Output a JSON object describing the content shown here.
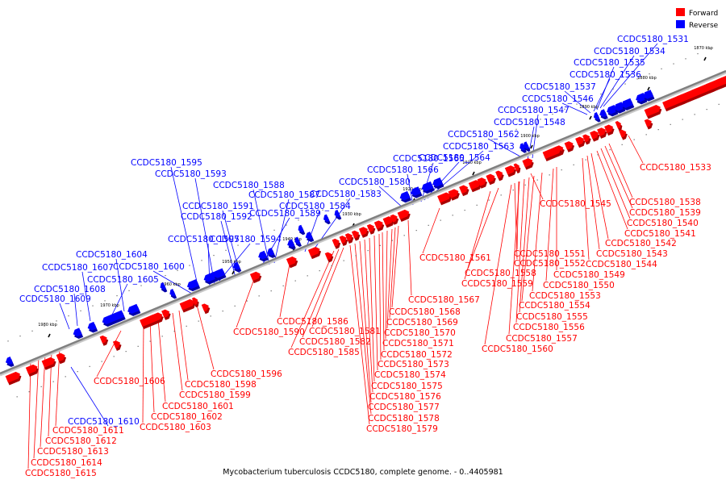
{
  "caption": "Mycobacterium tuberculosis CCDC5180, complete genome. - 0..4405981",
  "legend": [
    {
      "label": "Forward",
      "color": "#ff0000"
    },
    {
      "label": "Reverse",
      "color": "#0000ff"
    }
  ],
  "colors": {
    "forward": "#ff0000",
    "forward_dark": "#aa0000",
    "reverse": "#0000ff",
    "reverse_dark": "#0000aa",
    "axis": "#808080"
  },
  "ticks": [
    "1870 kbp",
    "1880 kbp",
    "1890 kbp",
    "1900 kbp",
    "1910 kbp",
    "1920 kbp",
    "1930 kbp",
    "1940 kbp",
    "1950 kbp",
    "1960 kbp",
    "1970 kbp",
    "1980 kbp"
  ],
  "forward_genes": [
    "CCDC5180_1533",
    "CCDC5180_1538",
    "CCDC5180_1539",
    "CCDC5180_1540",
    "CCDC5180_1541",
    "CCDC5180_1542",
    "CCDC5180_1543",
    "CCDC5180_1544",
    "CCDC5180_1545",
    "CCDC5180_1549",
    "CCDC5180_1550",
    "CCDC5180_1551",
    "CCDC5180_1552",
    "CCDC5180_1553",
    "CCDC5180_1554",
    "CCDC5180_1555",
    "CCDC5180_1556",
    "CCDC5180_1557",
    "CCDC5180_1558",
    "CCDC5180_1559",
    "CCDC5180_1560",
    "CCDC5180_1561",
    "CCDC5180_1567",
    "CCDC5180_1568",
    "CCDC5180_1569",
    "CCDC5180_1570",
    "CCDC5180_1571",
    "CCDC5180_1572",
    "CCDC5180_1573",
    "CCDC5180_1574",
    "CCDC5180_1575",
    "CCDC5180_1576",
    "CCDC5180_1577",
    "CCDC5180_1578",
    "CCDC5180_1579",
    "CCDC5180_1581",
    "CCDC5180_1582",
    "CCDC5180_1585",
    "CCDC5180_1586",
    "CCDC5180_1590",
    "CCDC5180_1596",
    "CCDC5180_1598",
    "CCDC5180_1599",
    "CCDC5180_1601",
    "CCDC5180_1602",
    "CCDC5180_1603",
    "CCDC5180_1606",
    "CCDC5180_1611",
    "CCDC5180_1612",
    "CCDC5180_1613",
    "CCDC5180_1614",
    "CCDC5180_1615"
  ],
  "reverse_genes": [
    "CCDC5180_1531",
    "CCDC5180_1534",
    "CCDC5180_1535",
    "CCDC5180_1536",
    "CCDC5180_1537",
    "CCDC5180_1546",
    "CCDC5180_1547",
    "CCDC5180_1548",
    "CCDC5180_1562",
    "CCDC5180_1563",
    "CCDC5180_1564",
    "CCDC5180_1565",
    "CCDC5180_1566",
    "CCDC5180_1580",
    "CCDC5180_1583",
    "CCDC5180_1584",
    "CCDC5180_1587",
    "CCDC5180_1588",
    "CCDC5180_1589",
    "CCDC5180_1591",
    "CCDC5180_1592",
    "CCDC5180_1593",
    "CCDC5180_1594",
    "CCDC5180_1595",
    "CCDC5180_1597",
    "CCDC5180_1600",
    "CCDC5180_1604",
    "CCDC5180_1605",
    "CCDC5180_1607",
    "CCDC5180_1608",
    "CCDC5180_1609",
    "CCDC5180_1610"
  ]
}
